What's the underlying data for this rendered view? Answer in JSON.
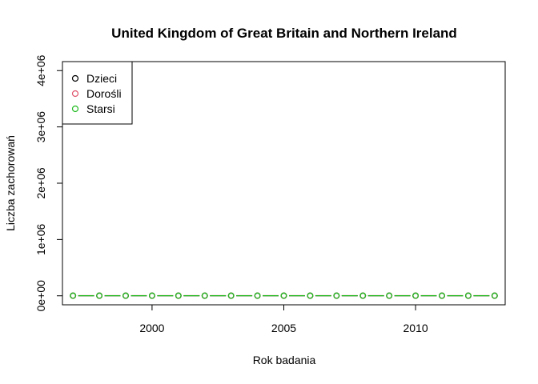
{
  "chart_data": {
    "type": "scatter",
    "title": "United Kingdom of Great Britain and Northern Ireland",
    "xlabel": "Rok badania",
    "ylabel": "Liczba zachorowań",
    "xlim": [
      1996.6,
      2013.4
    ],
    "ylim": [
      -160000,
      4160000
    ],
    "x_ticks": [
      2000,
      2005,
      2010
    ],
    "x_tick_labels": [
      "2000",
      "2005",
      "2010"
    ],
    "y_ticks": [
      0,
      1000000,
      2000000,
      3000000,
      4000000
    ],
    "y_tick_labels": [
      "0e+00",
      "1e+06",
      "2e+06",
      "3e+06",
      "4e+06"
    ],
    "grid": false,
    "legend_position": "top-left",
    "x": [
      1997,
      1998,
      1999,
      2000,
      2001,
      2002,
      2003,
      2004,
      2005,
      2006,
      2007,
      2008,
      2009,
      2010,
      2011,
      2012,
      2013
    ],
    "series": [
      {
        "name": "Dzieci",
        "color": "#000000",
        "values": [
          1500,
          1500,
          1500,
          1500,
          1500,
          1500,
          1500,
          1500,
          1500,
          1500,
          1500,
          1500,
          1500,
          1500,
          1500,
          1500,
          1500
        ]
      },
      {
        "name": "Dorośli",
        "color": "#DF536B",
        "values": [
          3000,
          3000,
          3000,
          3000,
          3000,
          3000,
          3000,
          3000,
          3000,
          3000,
          3000,
          3000,
          3000,
          3000,
          3000,
          3000,
          3000
        ]
      },
      {
        "name": "Starsi",
        "color": "#22BB22",
        "values": [
          2000,
          2000,
          2000,
          2000,
          2000,
          2000,
          2000,
          2000,
          2000,
          2000,
          2000,
          2000,
          2000,
          2000,
          2000,
          2000,
          2000
        ]
      }
    ]
  }
}
